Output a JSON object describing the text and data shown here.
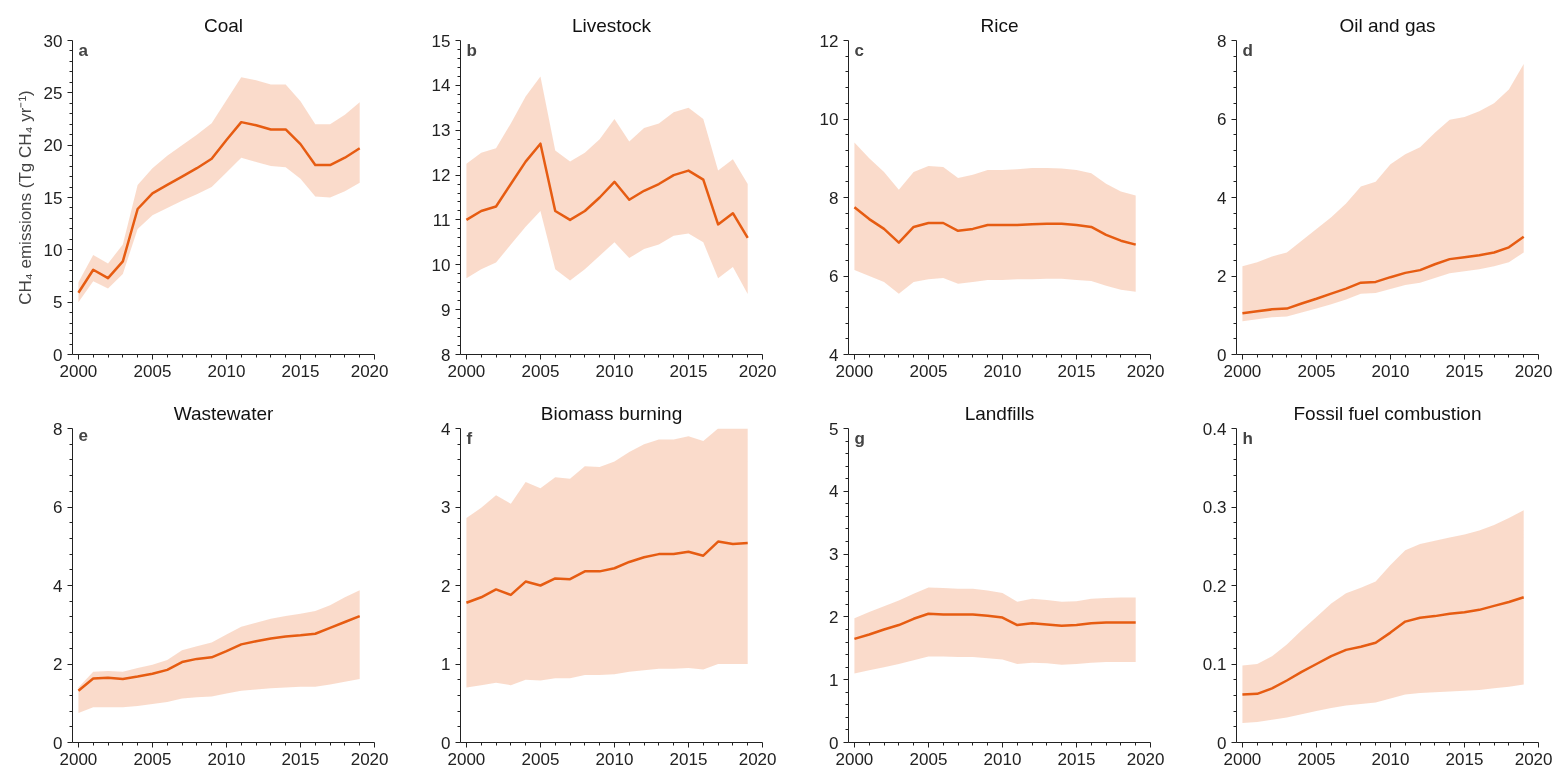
{
  "chart_data": [
    {
      "type": "line",
      "title": "Coal",
      "ylabel": "CH₄ emissions (Tg CH₄ yr⁻¹)",
      "annotations": [
        "a"
      ],
      "x": [
        2000,
        2001,
        2002,
        2003,
        2004,
        2005,
        2006,
        2007,
        2008,
        2009,
        2010,
        2011,
        2012,
        2013,
        2014,
        2015,
        2016,
        2017,
        2018,
        2019
      ],
      "xlim": [
        1999.6,
        2020
      ],
      "xticks": [
        2000,
        2005,
        2010,
        2015,
        2020
      ],
      "ylim": [
        0,
        30
      ],
      "yticks": [
        0,
        5,
        10,
        15,
        20,
        25,
        30
      ],
      "series": [
        {
          "color": "#e65c12",
          "values": [
            5.9,
            8.1,
            7.3,
            8.9,
            13.9,
            15.4,
            16.2,
            17.0,
            17.8,
            18.7,
            20.5,
            22.2,
            21.9,
            21.5,
            21.5,
            20.1,
            18.1,
            18.1,
            18.8,
            19.7
          ],
          "upper": [
            6.9,
            9.5,
            8.7,
            10.5,
            16.2,
            17.8,
            19.0,
            20.0,
            21.0,
            22.1,
            24.3,
            26.5,
            26.2,
            25.8,
            25.8,
            24.2,
            22.0,
            22.0,
            22.9,
            24.1
          ],
          "lower": [
            5.0,
            7.0,
            6.3,
            7.7,
            12.0,
            13.3,
            14.0,
            14.7,
            15.3,
            16.0,
            17.4,
            18.8,
            18.4,
            18.0,
            17.9,
            16.8,
            15.1,
            15.0,
            15.6,
            16.4
          ]
        }
      ]
    },
    {
      "type": "line",
      "title": "Livestock",
      "annotations": [
        "b"
      ],
      "x": [
        2000,
        2001,
        2002,
        2003,
        2004,
        2005,
        2006,
        2007,
        2008,
        2009,
        2010,
        2011,
        2012,
        2013,
        2014,
        2015,
        2016,
        2017,
        2018,
        2019
      ],
      "xlim": [
        1999.6,
        2020
      ],
      "xticks": [
        2000,
        2005,
        2010,
        2015,
        2020
      ],
      "ylim": [
        8,
        15
      ],
      "yticks": [
        8,
        9,
        10,
        11,
        12,
        13,
        14,
        15
      ],
      "series": [
        {
          "color": "#e65c12",
          "values": [
            11.0,
            11.2,
            11.3,
            11.8,
            12.3,
            12.7,
            11.2,
            11.0,
            11.2,
            11.5,
            11.85,
            11.45,
            11.65,
            11.8,
            12.0,
            12.1,
            11.9,
            10.9,
            11.15,
            10.6
          ],
          "upper": [
            12.25,
            12.5,
            12.6,
            13.15,
            13.75,
            14.2,
            12.55,
            12.3,
            12.5,
            12.8,
            13.25,
            12.75,
            13.05,
            13.15,
            13.4,
            13.5,
            13.25,
            12.1,
            12.35,
            11.8
          ],
          "lower": [
            9.7,
            9.9,
            10.05,
            10.45,
            10.85,
            11.2,
            9.9,
            9.65,
            9.9,
            10.2,
            10.5,
            10.15,
            10.35,
            10.45,
            10.65,
            10.7,
            10.5,
            9.7,
            9.95,
            9.35
          ]
        }
      ]
    },
    {
      "type": "line",
      "title": "Rice",
      "annotations": [
        "c"
      ],
      "x": [
        2000,
        2001,
        2002,
        2003,
        2004,
        2005,
        2006,
        2007,
        2008,
        2009,
        2010,
        2011,
        2012,
        2013,
        2014,
        2015,
        2016,
        2017,
        2018,
        2019
      ],
      "xlim": [
        1999.6,
        2020
      ],
      "xticks": [
        2000,
        2005,
        2010,
        2015,
        2020
      ],
      "ylim": [
        4,
        12
      ],
      "yticks": [
        4,
        6,
        8,
        10,
        12
      ],
      "series": [
        {
          "color": "#e65c12",
          "values": [
            7.75,
            7.45,
            7.2,
            6.85,
            7.25,
            7.35,
            7.35,
            7.15,
            7.2,
            7.3,
            7.3,
            7.3,
            7.32,
            7.33,
            7.33,
            7.3,
            7.25,
            7.05,
            6.9,
            6.8
          ],
          "upper": [
            9.4,
            9.0,
            8.65,
            8.2,
            8.65,
            8.8,
            8.78,
            8.5,
            8.58,
            8.7,
            8.7,
            8.72,
            8.75,
            8.75,
            8.74,
            8.7,
            8.62,
            8.35,
            8.15,
            8.05
          ],
          "lower": [
            6.15,
            6.0,
            5.85,
            5.55,
            5.85,
            5.92,
            5.95,
            5.8,
            5.85,
            5.9,
            5.9,
            5.92,
            5.92,
            5.93,
            5.93,
            5.9,
            5.87,
            5.75,
            5.65,
            5.6
          ]
        }
      ]
    },
    {
      "type": "line",
      "title": "Oil and gas",
      "annotations": [
        "d"
      ],
      "x": [
        2000,
        2001,
        2002,
        2003,
        2004,
        2005,
        2006,
        2007,
        2008,
        2009,
        2010,
        2011,
        2012,
        2013,
        2014,
        2015,
        2016,
        2017,
        2018,
        2019
      ],
      "xlim": [
        1999.6,
        2020
      ],
      "xticks": [
        2000,
        2005,
        2010,
        2015,
        2020
      ],
      "ylim": [
        0,
        8
      ],
      "yticks": [
        0,
        2,
        4,
        6,
        8
      ],
      "series": [
        {
          "color": "#e65c12",
          "values": [
            1.05,
            1.1,
            1.15,
            1.17,
            1.3,
            1.42,
            1.55,
            1.68,
            1.83,
            1.85,
            1.97,
            2.08,
            2.15,
            2.3,
            2.43,
            2.48,
            2.53,
            2.6,
            2.73,
            3.0
          ],
          "upper": [
            2.25,
            2.35,
            2.5,
            2.6,
            2.9,
            3.2,
            3.5,
            3.85,
            4.28,
            4.4,
            4.85,
            5.1,
            5.28,
            5.65,
            5.98,
            6.05,
            6.2,
            6.4,
            6.75,
            7.4
          ],
          "lower": [
            0.85,
            0.9,
            0.95,
            0.97,
            1.07,
            1.17,
            1.28,
            1.4,
            1.55,
            1.57,
            1.67,
            1.77,
            1.83,
            1.95,
            2.07,
            2.12,
            2.17,
            2.25,
            2.35,
            2.6
          ]
        }
      ]
    },
    {
      "type": "line",
      "title": "Wastewater",
      "annotations": [
        "e"
      ],
      "x": [
        2000,
        2001,
        2002,
        2003,
        2004,
        2005,
        2006,
        2007,
        2008,
        2009,
        2010,
        2011,
        2012,
        2013,
        2014,
        2015,
        2016,
        2017,
        2018,
        2019
      ],
      "xlim": [
        1999.6,
        2020
      ],
      "xticks": [
        2000,
        2005,
        2010,
        2015,
        2020
      ],
      "ylim": [
        0,
        8
      ],
      "yticks": [
        0,
        2,
        4,
        6,
        8
      ],
      "series": [
        {
          "color": "#e65c12",
          "values": [
            1.32,
            1.63,
            1.65,
            1.62,
            1.68,
            1.75,
            1.85,
            2.05,
            2.13,
            2.17,
            2.33,
            2.5,
            2.58,
            2.65,
            2.7,
            2.73,
            2.77,
            2.92,
            3.07,
            3.22
          ],
          "upper": [
            1.4,
            1.8,
            1.82,
            1.8,
            1.9,
            1.98,
            2.1,
            2.35,
            2.45,
            2.55,
            2.75,
            2.95,
            3.05,
            3.15,
            3.22,
            3.28,
            3.35,
            3.5,
            3.7,
            3.88
          ],
          "lower": [
            0.75,
            0.9,
            0.9,
            0.9,
            0.93,
            0.98,
            1.03,
            1.12,
            1.15,
            1.17,
            1.25,
            1.32,
            1.35,
            1.38,
            1.4,
            1.42,
            1.42,
            1.48,
            1.55,
            1.62
          ]
        }
      ]
    },
    {
      "type": "line",
      "title": "Biomass burning",
      "annotations": [
        "f"
      ],
      "x": [
        2000,
        2001,
        2002,
        2003,
        2004,
        2005,
        2006,
        2007,
        2008,
        2009,
        2010,
        2011,
        2012,
        2013,
        2014,
        2015,
        2016,
        2017,
        2018,
        2019
      ],
      "xlim": [
        1999.6,
        2020
      ],
      "xticks": [
        2000,
        2005,
        2010,
        2015,
        2020
      ],
      "ylim": [
        0,
        4
      ],
      "yticks": [
        0,
        1,
        2,
        3,
        4
      ],
      "series": [
        {
          "color": "#e65c12",
          "values": [
            1.78,
            1.85,
            1.95,
            1.88,
            2.05,
            2.0,
            2.09,
            2.08,
            2.18,
            2.18,
            2.22,
            2.3,
            2.36,
            2.4,
            2.4,
            2.43,
            2.38,
            2.56,
            2.53,
            2.54
          ],
          "upper": [
            2.86,
            2.99,
            3.15,
            3.04,
            3.32,
            3.24,
            3.38,
            3.36,
            3.52,
            3.51,
            3.58,
            3.7,
            3.8,
            3.86,
            3.86,
            3.9,
            3.84,
            4.0,
            4.0,
            4.0
          ],
          "lower": [
            0.7,
            0.73,
            0.76,
            0.73,
            0.8,
            0.79,
            0.82,
            0.82,
            0.86,
            0.86,
            0.87,
            0.9,
            0.92,
            0.94,
            0.94,
            0.95,
            0.93,
            1.0,
            1.0,
            1.0
          ]
        }
      ]
    },
    {
      "type": "line",
      "title": "Landfills",
      "annotations": [
        "g"
      ],
      "x": [
        2000,
        2001,
        2002,
        2003,
        2004,
        2005,
        2006,
        2007,
        2008,
        2009,
        2010,
        2011,
        2012,
        2013,
        2014,
        2015,
        2016,
        2017,
        2018,
        2019
      ],
      "xlim": [
        1999.6,
        2020
      ],
      "xticks": [
        2000,
        2005,
        2010,
        2015,
        2020
      ],
      "ylim": [
        0,
        5
      ],
      "yticks": [
        0,
        1,
        2,
        3,
        4,
        5
      ],
      "series": [
        {
          "color": "#e65c12",
          "values": [
            1.65,
            1.72,
            1.8,
            1.87,
            1.97,
            2.05,
            2.04,
            2.04,
            2.04,
            2.02,
            1.99,
            1.87,
            1.9,
            1.88,
            1.86,
            1.87,
            1.9,
            1.91,
            1.91,
            1.91
          ],
          "upper": [
            1.98,
            2.08,
            2.17,
            2.26,
            2.37,
            2.47,
            2.46,
            2.45,
            2.45,
            2.42,
            2.38,
            2.24,
            2.29,
            2.27,
            2.24,
            2.25,
            2.29,
            2.3,
            2.31,
            2.31
          ],
          "lower": [
            1.1,
            1.15,
            1.2,
            1.25,
            1.31,
            1.37,
            1.37,
            1.36,
            1.36,
            1.34,
            1.32,
            1.25,
            1.27,
            1.26,
            1.24,
            1.25,
            1.27,
            1.28,
            1.28,
            1.28
          ]
        }
      ]
    },
    {
      "type": "line",
      "title": "Fossil fuel combustion",
      "annotations": [
        "h"
      ],
      "x": [
        2000,
        2001,
        2002,
        2003,
        2004,
        2005,
        2006,
        2007,
        2008,
        2009,
        2010,
        2011,
        2012,
        2013,
        2014,
        2015,
        2016,
        2017,
        2018,
        2019
      ],
      "xlim": [
        1999.6,
        2020
      ],
      "xticks": [
        2000,
        2005,
        2010,
        2015,
        2020
      ],
      "ylim": [
        0,
        0.4
      ],
      "yticks": [
        0,
        0.1,
        0.2,
        0.3,
        0.4
      ],
      "series": [
        {
          "color": "#e65c12",
          "values": [
            0.061,
            0.062,
            0.069,
            0.079,
            0.09,
            0.1,
            0.11,
            0.118,
            0.122,
            0.127,
            0.14,
            0.154,
            0.159,
            0.161,
            0.164,
            0.166,
            0.169,
            0.174,
            0.179,
            0.185
          ],
          "upper": [
            0.098,
            0.1,
            0.11,
            0.125,
            0.143,
            0.16,
            0.177,
            0.19,
            0.197,
            0.205,
            0.226,
            0.245,
            0.253,
            0.257,
            0.261,
            0.265,
            0.27,
            0.277,
            0.286,
            0.296
          ],
          "lower": [
            0.025,
            0.026,
            0.029,
            0.032,
            0.036,
            0.04,
            0.044,
            0.047,
            0.049,
            0.051,
            0.056,
            0.061,
            0.063,
            0.064,
            0.065,
            0.066,
            0.067,
            0.069,
            0.071,
            0.074
          ]
        }
      ]
    }
  ]
}
